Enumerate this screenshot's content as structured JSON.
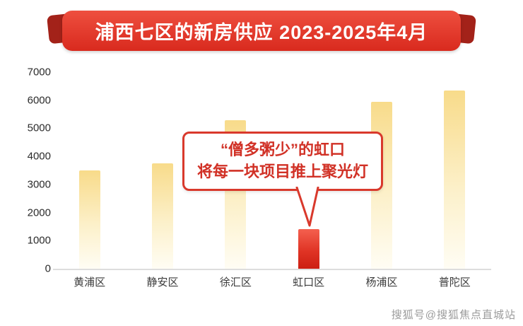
{
  "banner": {
    "title": "浦西七区的新房供应 2023-2025年4月"
  },
  "chart_data": {
    "type": "bar",
    "title": "浦西七区的新房供应 2023-2025年4月",
    "categories": [
      "黄浦区",
      "静安区",
      "徐汇区",
      "虹口区",
      "杨浦区",
      "普陀区"
    ],
    "values": [
      3500,
      3750,
      5300,
      1400,
      5950,
      6350
    ],
    "highlight_index": 3,
    "xlabel": "",
    "ylabel": "",
    "ylim": [
      0,
      7000
    ],
    "yticks": [
      0,
      1000,
      2000,
      3000,
      4000,
      5000,
      6000,
      7000
    ],
    "grid": false,
    "legend": "none",
    "colors": {
      "bar_top": "#f8db8a",
      "bar_bottom": "#fffdf4",
      "highlight_top": "#f4604f",
      "highlight_bottom": "#cc1f12",
      "banner_red": "#d92a1e",
      "callout_red": "#d13126"
    }
  },
  "callout": {
    "line1": "“僧多粥少”的虹口",
    "line2": "将每一块项目推上聚光灯"
  },
  "watermark": "搜狐号@搜狐焦点直城站"
}
